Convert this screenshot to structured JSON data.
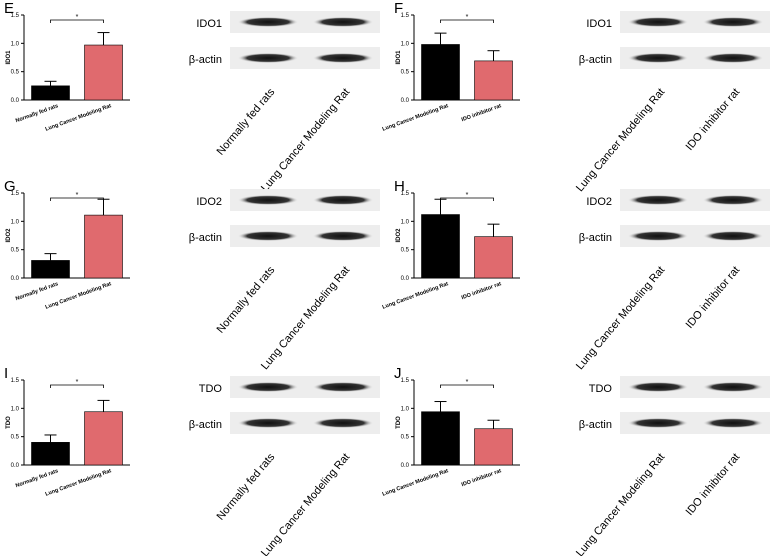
{
  "chart_data": [
    {
      "type": "bar",
      "panel": "E",
      "y_label": "IDO1",
      "categories": [
        "Normally fed rats",
        "Lung Cancer Modeling Rat"
      ],
      "values": [
        0.25,
        0.97
      ],
      "errors": [
        0.08,
        0.22
      ],
      "colors": [
        "#000000",
        "#e06a6e"
      ],
      "ylim": [
        0,
        1.5
      ],
      "yticks": [
        {
          "value": 0,
          "label": "0.0"
        },
        0.5,
        {
          "value": 1,
          "label": "1.0"
        },
        1.5
      ],
      "significance": "*",
      "blot": {
        "proteins": [
          "IDO1",
          "β-actin"
        ],
        "lanes": [
          "Normally fed rats",
          "Lung Cancer Modeling Rat"
        ]
      }
    },
    {
      "type": "bar",
      "panel": "F",
      "y_label": "IDO1",
      "categories": [
        "Lung Cancer Modeling Rat",
        "IDO inhibitor rat"
      ],
      "values": [
        0.98,
        0.69
      ],
      "errors": [
        0.2,
        0.18
      ],
      "colors": [
        "#000000",
        "#e06a6e"
      ],
      "ylim": [
        0,
        1.5
      ],
      "yticks": [
        {
          "value": 0,
          "label": "0.0"
        },
        0.5,
        {
          "value": 1,
          "label": "1.0"
        },
        1.5
      ],
      "significance": "*",
      "blot": {
        "proteins": [
          "IDO1",
          "β-actin"
        ],
        "lanes": [
          "Lung Cancer Modeling Rat",
          "IDO inhibitor rat"
        ]
      }
    },
    {
      "type": "bar",
      "panel": "G",
      "y_label": "IDO2",
      "categories": [
        "Normally fed rats",
        "Lung Cancer Modeling Rat"
      ],
      "values": [
        0.31,
        1.11
      ],
      "errors": [
        0.12,
        0.28
      ],
      "colors": [
        "#000000",
        "#e06a6e"
      ],
      "ylim": [
        0,
        1.5
      ],
      "yticks": [
        {
          "value": 0,
          "label": "0.0"
        },
        0.5,
        {
          "value": 1,
          "label": "1.0"
        },
        1.5
      ],
      "significance": "*",
      "blot": {
        "proteins": [
          "IDO2",
          "β-actin"
        ],
        "lanes": [
          "Normally fed rats",
          "Lung Cancer Modeling Rat"
        ]
      }
    },
    {
      "type": "bar",
      "panel": "H",
      "y_label": "IDO2",
      "categories": [
        "Lung Cancer Modeling Rat",
        "IDO inhibitor rat"
      ],
      "values": [
        1.12,
        0.73
      ],
      "errors": [
        0.27,
        0.22
      ],
      "colors": [
        "#000000",
        "#e06a6e"
      ],
      "ylim": [
        0,
        1.5
      ],
      "yticks": [
        {
          "value": 0,
          "label": "0.0"
        },
        0.5,
        {
          "value": 1,
          "label": "1.0"
        },
        1.5
      ],
      "significance": "*",
      "blot": {
        "proteins": [
          "IDO2",
          "β-actin"
        ],
        "lanes": [
          "Lung Cancer Modeling Rat",
          "IDO inhibitor rat"
        ]
      }
    },
    {
      "type": "bar",
      "panel": "I",
      "y_label": "TDO",
      "categories": [
        "Normally fed rats",
        "Lung Cancer Modeling Rat"
      ],
      "values": [
        0.4,
        0.94
      ],
      "errors": [
        0.13,
        0.2
      ],
      "colors": [
        "#000000",
        "#e06a6e"
      ],
      "ylim": [
        0,
        1.5
      ],
      "yticks": [
        {
          "value": 0,
          "label": "0.0"
        },
        0.5,
        {
          "value": 1,
          "label": "1.0"
        },
        1.5
      ],
      "significance": "*",
      "blot": {
        "proteins": [
          "TDO",
          "β-actin"
        ],
        "lanes": [
          "Normally fed rats",
          "Lung Cancer Modeling Rat"
        ]
      }
    },
    {
      "type": "bar",
      "panel": "J",
      "y_label": "TDO",
      "categories": [
        "Lung Cancer Modeling Rat",
        "IDO inhibitor rat"
      ],
      "values": [
        0.94,
        0.64
      ],
      "errors": [
        0.18,
        0.15
      ],
      "colors": [
        "#000000",
        "#e06a6e"
      ],
      "ylim": [
        0,
        1.5
      ],
      "yticks": [
        {
          "value": 0,
          "label": "0.0"
        },
        0.5,
        {
          "value": 1,
          "label": "1.0"
        },
        1.5
      ],
      "significance": "*",
      "blot": {
        "proteins": [
          "TDO",
          "β-actin"
        ],
        "lanes": [
          "Lung Cancer Modeling Rat",
          "IDO inhibitor rat"
        ]
      }
    }
  ]
}
